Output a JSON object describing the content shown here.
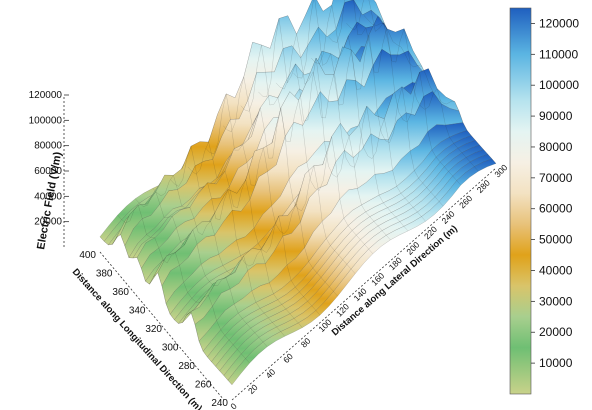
{
  "chart_data": {
    "type": "surface3d",
    "title": "",
    "zlabel": "Electric Field (V/m)",
    "xlabel": "Distance along Lateral Direction (m)",
    "ylabel": "Distance along Longitudinal Direction (m)",
    "x_ticks": [
      "0",
      "20",
      "40",
      "60",
      "80",
      "100",
      "120",
      "140",
      "160",
      "180",
      "200",
      "220",
      "240",
      "260",
      "280",
      "300"
    ],
    "y_ticks": [
      "240",
      "260",
      "280",
      "300",
      "320",
      "340",
      "360",
      "380",
      "400"
    ],
    "z_ticks": [
      "20000",
      "40000",
      "60000",
      "80000",
      "100000",
      "120000"
    ],
    "xlim": [
      0,
      300
    ],
    "ylim": [
      240,
      400
    ],
    "zlim": [
      0,
      120000
    ],
    "colorbar": {
      "ticks": [
        "10000",
        "20000",
        "30000",
        "40000",
        "50000",
        "60000",
        "70000",
        "80000",
        "90000",
        "100000",
        "110000",
        "120000"
      ],
      "range": [
        0,
        125000
      ],
      "stops": [
        {
          "value": 0,
          "color": "#c9d28a"
        },
        {
          "value": 15000,
          "color": "#6fbf73"
        },
        {
          "value": 25000,
          "color": "#a8cf8e"
        },
        {
          "value": 35000,
          "color": "#d9c46a"
        },
        {
          "value": 45000,
          "color": "#e0a21a"
        },
        {
          "value": 55000,
          "color": "#e8c27a"
        },
        {
          "value": 65000,
          "color": "#f3e2c2"
        },
        {
          "value": 75000,
          "color": "#f6f0e4"
        },
        {
          "value": 85000,
          "color": "#e4f4f2"
        },
        {
          "value": 95000,
          "color": "#b6e3ee"
        },
        {
          "value": 110000,
          "color": "#5bb5e2"
        },
        {
          "value": 125000,
          "color": "#1f5fbf"
        }
      ]
    },
    "ridges": [
      {
        "y": 375,
        "peak": 80000
      },
      {
        "y": 355,
        "peak": 55000
      },
      {
        "y": 330,
        "peak": 78000
      },
      {
        "y": 290,
        "peak": 62000
      }
    ]
  }
}
